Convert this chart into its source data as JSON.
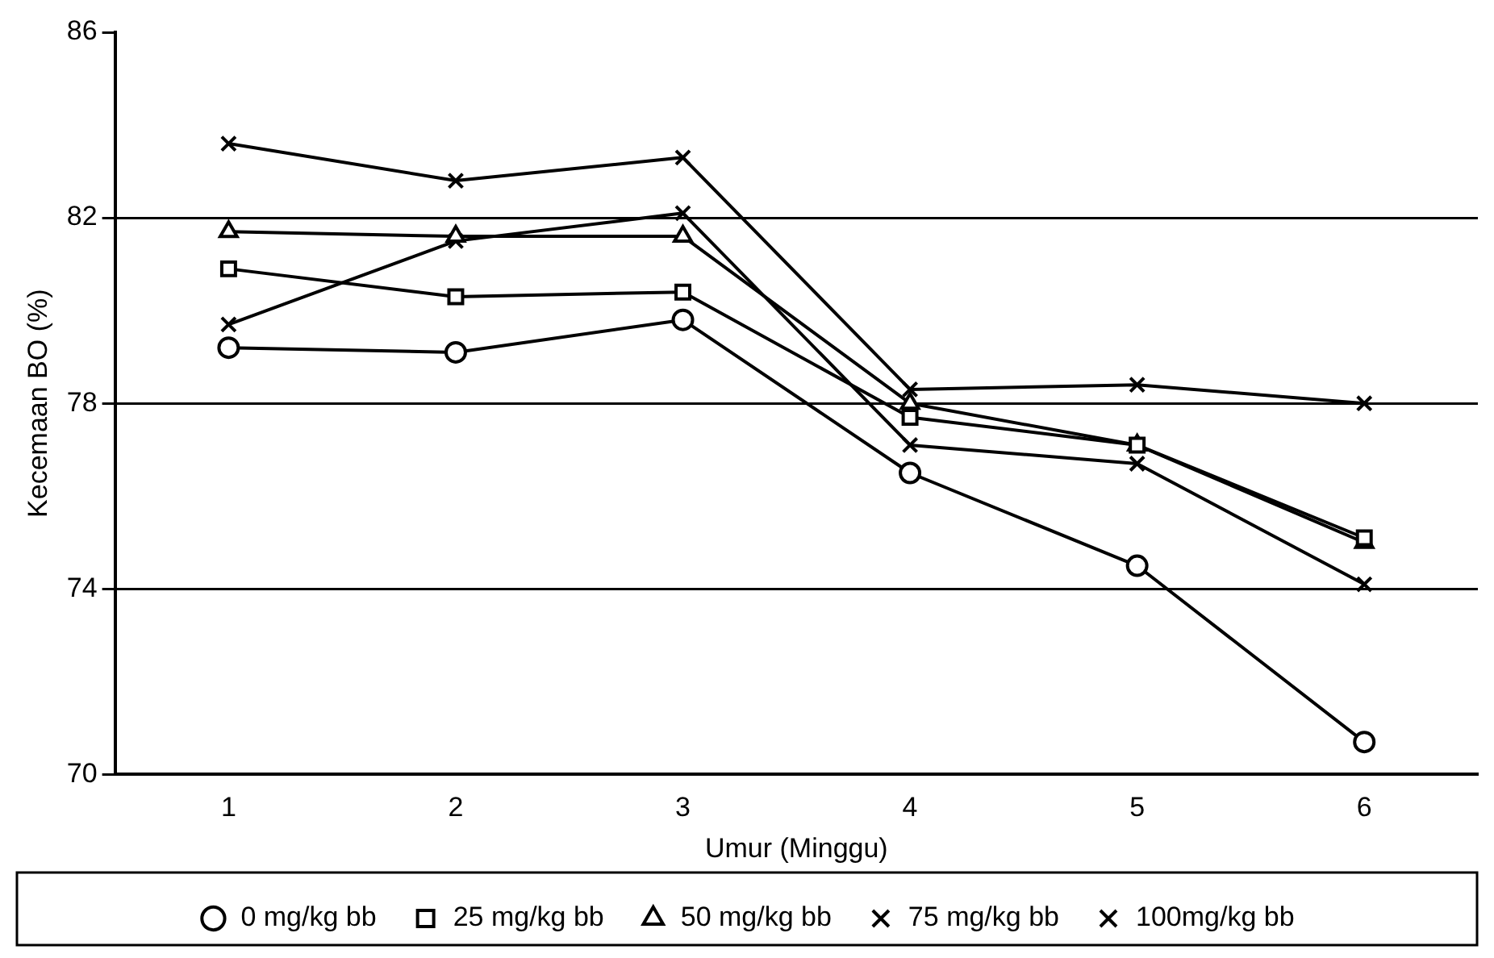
{
  "chart_data": {
    "type": "line",
    "xlabel": "Umur (Minggu)",
    "ylabel": "Kecemaan BO (%)",
    "categories": [
      "1",
      "2",
      "3",
      "4",
      "5",
      "6"
    ],
    "series": [
      {
        "name": "0 mg/kg bb",
        "color": "#000000",
        "marker": "circle",
        "values": [
          79.2,
          79.1,
          79.8,
          76.5,
          74.5,
          70.7
        ]
      },
      {
        "name": "25 mg/kg bb",
        "color": "#000000",
        "marker": "square",
        "values": [
          80.9,
          80.3,
          80.4,
          77.7,
          77.1,
          75.1
        ]
      },
      {
        "name": "50 mg/kg bb",
        "color": "#000000",
        "marker": "triangle",
        "values": [
          81.7,
          81.6,
          81.6,
          78.0,
          77.1,
          75.0
        ]
      },
      {
        "name": "75 mg/kg bb",
        "color": "#000000",
        "marker": "cross",
        "values": [
          83.6,
          82.8,
          83.3,
          78.3,
          78.4,
          78.0
        ]
      },
      {
        "name": "100mg/kg bb",
        "color": "#000000",
        "marker": "cross",
        "values": [
          79.7,
          81.5,
          82.1,
          77.1,
          76.7,
          74.1
        ]
      }
    ],
    "ylim": [
      70,
      86
    ],
    "yticks": [
      70,
      74,
      78,
      82,
      86
    ],
    "grid": "y",
    "legend": "bottom",
    "line_style": "solid"
  }
}
